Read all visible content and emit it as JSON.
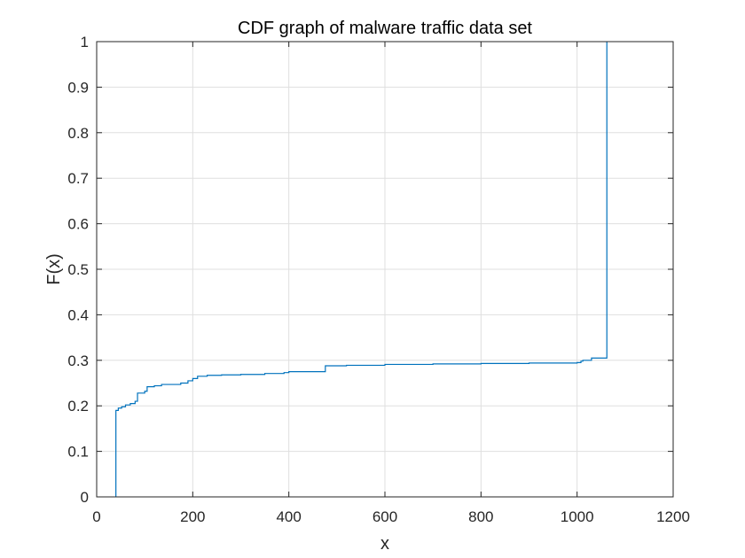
{
  "chart_data": {
    "type": "line",
    "title": "CDF graph of malware traffic data set",
    "xlabel": "x",
    "ylabel": "F(x)",
    "xlim": [
      0,
      1200
    ],
    "ylim": [
      0,
      1
    ],
    "xticks": [
      0,
      200,
      400,
      600,
      800,
      1000,
      1200
    ],
    "yticks": [
      0,
      0.1,
      0.2,
      0.3,
      0.4,
      0.5,
      0.6,
      0.7,
      0.8,
      0.9,
      1
    ],
    "xtick_labels": [
      "0",
      "200",
      "400",
      "600",
      "800",
      "1000",
      "1200"
    ],
    "ytick_labels": [
      "0",
      "0.1",
      "0.2",
      "0.3",
      "0.4",
      "0.5",
      "0.6",
      "0.7",
      "0.8",
      "0.9",
      "1"
    ],
    "grid": true,
    "series": [
      {
        "color": "#0072bd",
        "step": true,
        "x": [
          40,
          40,
          45,
          52,
          60,
          70,
          80,
          85,
          100,
          105,
          120,
          135,
          175,
          190,
          200,
          210,
          230,
          260,
          300,
          350,
          390,
          400,
          476,
          520,
          600,
          700,
          800,
          900,
          1000,
          1008,
          1012,
          1030,
          1062,
          1062
        ],
        "y": [
          0,
          0.19,
          0.195,
          0.198,
          0.202,
          0.205,
          0.21,
          0.228,
          0.232,
          0.242,
          0.244,
          0.247,
          0.25,
          0.255,
          0.26,
          0.265,
          0.267,
          0.268,
          0.269,
          0.271,
          0.273,
          0.275,
          0.288,
          0.289,
          0.291,
          0.292,
          0.293,
          0.294,
          0.295,
          0.298,
          0.3,
          0.305,
          0.306,
          1
        ]
      }
    ]
  }
}
